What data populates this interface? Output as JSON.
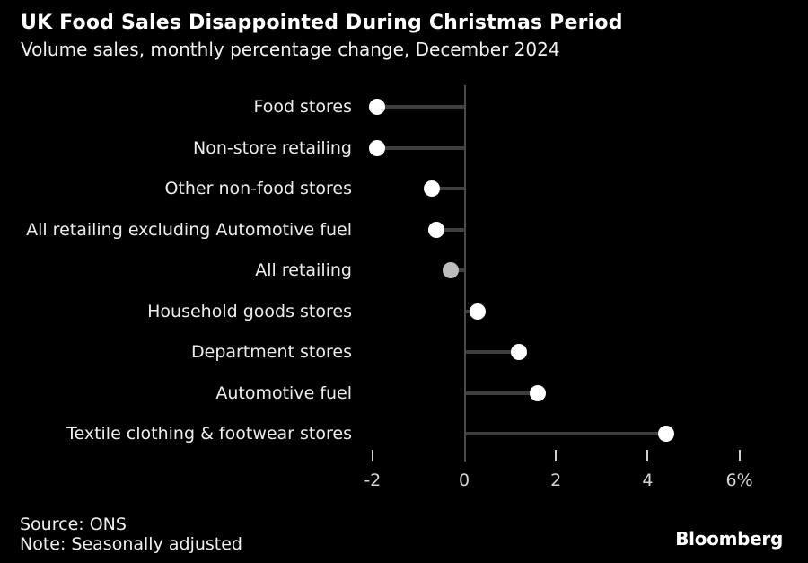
{
  "header": {
    "title": "UK Food Sales Disappointed During Christmas Period",
    "subtitle": "Volume sales, monthly percentage change, December 2024"
  },
  "chart_data": {
    "type": "scatter",
    "style": "lollipop-horizontal",
    "categories": [
      "Food stores",
      "Non-store retailing",
      "Other non-food stores",
      "All retailing excluding Automotive fuel",
      "All retailing",
      "Household goods stores",
      "Department stores",
      "Automotive fuel",
      "Textile clothing & footwear stores"
    ],
    "values": [
      -1.9,
      -1.9,
      -0.7,
      -0.6,
      -0.3,
      0.3,
      1.2,
      1.6,
      4.4
    ],
    "point_colors": [
      "#ffffff",
      "#ffffff",
      "#ffffff",
      "#ffffff",
      "#bdbdbd",
      "#ffffff",
      "#ffffff",
      "#ffffff",
      "#ffffff"
    ],
    "x_ticks": [
      -2,
      0,
      2,
      4,
      6
    ],
    "x_tick_labels": [
      "-2",
      "0",
      "2",
      "4",
      "6%"
    ],
    "xlim": [
      -2.6,
      6.9
    ],
    "xlabel": "",
    "ylabel": "",
    "grid": false,
    "legend": "none",
    "stem_color": "#3f3f3f",
    "axis_color": "#4a4a4a",
    "background_color": "#000000"
  },
  "footer": {
    "source": "Source: ONS",
    "note": "Note: Seasonally adjusted",
    "logo": "Bloomberg"
  }
}
